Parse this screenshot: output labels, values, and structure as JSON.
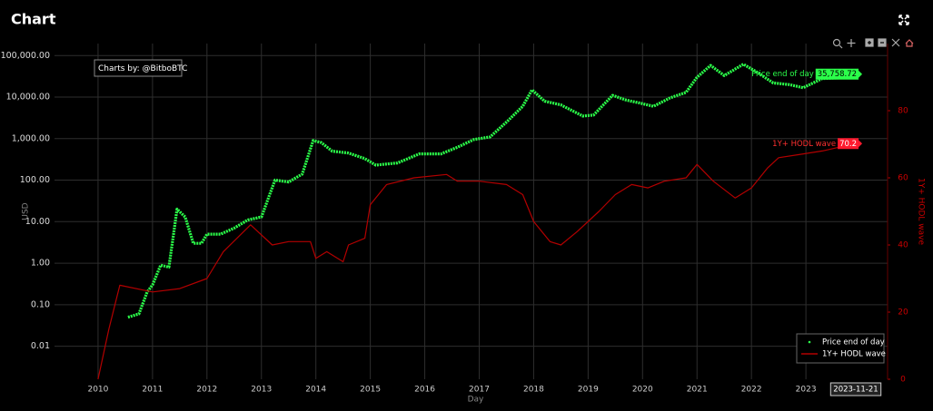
{
  "title": "Chart",
  "chart_data": {
    "type": "line",
    "credit": "Charts by: @BitboBTC",
    "x_label": "Day",
    "y_label": "USD",
    "y2_label": "1Y+ HODL wave",
    "crosshair_label": "2023-11-21",
    "log_y": true,
    "grid": true,
    "legend": "bottom-right",
    "xlim": [
      2009.2,
      2024.5
    ],
    "xticks": [
      2010,
      2011,
      2012,
      2013,
      2014,
      2015,
      2016,
      2017,
      2018,
      2019,
      2020,
      2021,
      2022,
      2023
    ],
    "ylim": [
      0.0016,
      195000
    ],
    "yticks": [
      {
        "value": 0.01,
        "label": "0.01"
      },
      {
        "value": 0.1,
        "label": "0.10"
      },
      {
        "value": 1,
        "label": "1.00"
      },
      {
        "value": 10,
        "label": "10.00"
      },
      {
        "value": 100,
        "label": "100.00"
      },
      {
        "value": 1000,
        "label": "1,000.00"
      },
      {
        "value": 10000,
        "label": "10,000.00"
      },
      {
        "value": 100000,
        "label": "100,000.00"
      }
    ],
    "y2lim": [
      0,
      100
    ],
    "y2ticks": [
      0,
      20,
      40,
      60,
      80
    ],
    "series": [
      {
        "name": "Price end of day",
        "color": "#2bff4a",
        "last_label": "35,758.72",
        "x": [
          2010.55,
          2010.75,
          2010.9,
          2011.0,
          2011.15,
          2011.3,
          2011.45,
          2011.6,
          2011.75,
          2011.9,
          2012.0,
          2012.25,
          2012.5,
          2012.75,
          2013.0,
          2013.25,
          2013.5,
          2013.75,
          2013.95,
          2014.1,
          2014.3,
          2014.6,
          2014.9,
          2015.1,
          2015.5,
          2015.9,
          2016.3,
          2016.6,
          2016.9,
          2017.2,
          2017.5,
          2017.8,
          2017.97,
          2018.2,
          2018.5,
          2018.9,
          2019.1,
          2019.45,
          2019.7,
          2019.95,
          2020.2,
          2020.5,
          2020.8,
          2021.0,
          2021.25,
          2021.5,
          2021.85,
          2022.1,
          2022.4,
          2022.7,
          2022.95,
          2023.3,
          2023.6,
          2023.9
        ],
        "values": [
          0.05,
          0.06,
          0.2,
          0.3,
          0.9,
          0.8,
          20,
          13,
          3,
          3,
          5,
          5,
          7,
          11,
          13,
          100,
          90,
          140,
          900,
          800,
          500,
          450,
          330,
          230,
          260,
          430,
          430,
          620,
          950,
          1100,
          2500,
          6000,
          15000,
          8000,
          6500,
          3500,
          3700,
          11000,
          8500,
          7200,
          6000,
          9500,
          13000,
          30000,
          58000,
          33000,
          62000,
          40000,
          22000,
          20000,
          16800,
          28000,
          29000,
          35758.72
        ]
      },
      {
        "name": "1Y+ HODL wave",
        "color": "#b30000",
        "axis": "y2",
        "last_label": "70.2",
        "x": [
          2010.0,
          2010.2,
          2010.4,
          2011.0,
          2011.5,
          2012.0,
          2012.3,
          2012.8,
          2013.2,
          2013.5,
          2013.9,
          2014.0,
          2014.2,
          2014.5,
          2014.6,
          2014.9,
          2015.0,
          2015.3,
          2015.8,
          2016.4,
          2016.6,
          2017.0,
          2017.5,
          2017.8,
          2018.0,
          2018.3,
          2018.5,
          2018.8,
          2019.2,
          2019.5,
          2019.8,
          2020.1,
          2020.4,
          2020.8,
          2021.0,
          2021.3,
          2021.7,
          2022.0,
          2022.3,
          2022.5,
          2022.9,
          2023.3,
          2023.9
        ],
        "values": [
          0,
          15,
          28,
          26,
          27,
          30,
          38,
          46,
          40,
          41,
          41,
          36,
          38,
          35,
          40,
          42,
          52,
          58,
          60,
          61,
          59,
          59,
          58,
          55,
          47,
          41,
          40,
          44,
          50,
          55,
          58,
          57,
          59,
          60,
          64,
          59,
          54,
          57,
          63,
          66,
          67,
          68,
          70.2
        ]
      }
    ]
  }
}
